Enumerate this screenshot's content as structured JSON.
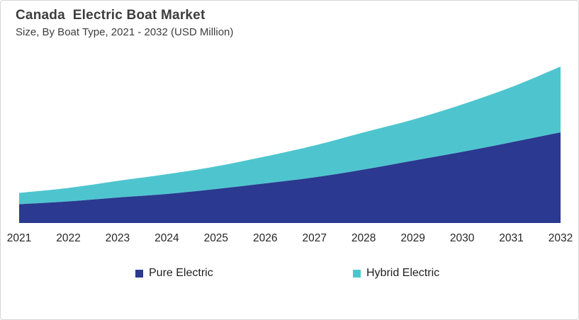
{
  "header": {
    "title": "Canada  Electric Boat Market",
    "subtitle": "Size, By Boat Type, 2021 - 2032 (USD Million)"
  },
  "chart_data": {
    "type": "area",
    "stacked": true,
    "title": "Canada Electric Boat Market",
    "subtitle": "Size, By Boat Type, 2021 - 2032 (USD Million)",
    "units": "USD Million",
    "categories": [
      "2021",
      "2022",
      "2023",
      "2024",
      "2025",
      "2026",
      "2027",
      "2028",
      "2029",
      "2030",
      "2031",
      "2032"
    ],
    "series": [
      {
        "name": "Pure Electric",
        "color": "#2B3990",
        "values": [
          26.5,
          30.5,
          36,
          41,
          48,
          56,
          64.5,
          75.5,
          88,
          100.5,
          114,
          128
        ]
      },
      {
        "name": "Hybrid Electric",
        "color": "#4EC5CE",
        "values": [
          16,
          19,
          23.5,
          28,
          32,
          38,
          45,
          52.5,
          58,
          67,
          78,
          93
        ]
      }
    ],
    "xlabel": "",
    "ylabel": "",
    "ylim": [
      0,
      230
    ],
    "y_axis_visible": false,
    "x_axis_visible": true,
    "grid": false,
    "legend_position": "bottom"
  }
}
